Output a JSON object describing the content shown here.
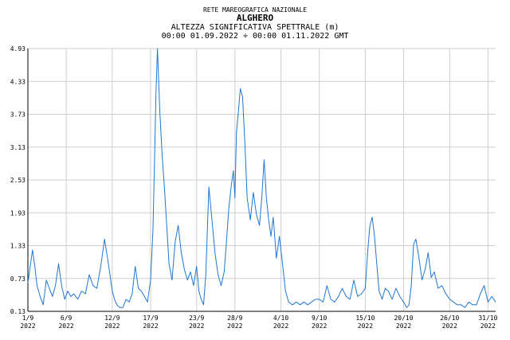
{
  "header": {
    "network": "RETE MAREOGRAFICA NAZIONALE",
    "station": "ALGHERO",
    "quantity": "ALTEZZA SIGNIFICATIVA SPETTRALE (m)",
    "period": "00:00 01.09.2022 ÷ 00:00 01.11.2022 GMT"
  },
  "colors": {
    "series": "#1f77d4",
    "grid": "#cfcfcf",
    "axis": "#000000"
  },
  "chart_data": {
    "type": "line",
    "title": "ALTEZZA SIGNIFICATIVA SPETTRALE (m)",
    "xlabel": "",
    "ylabel": "",
    "xlim": [
      0,
      61
    ],
    "ylim": [
      0.13,
      4.93
    ],
    "grid": true,
    "legend": "none",
    "y_ticks": [
      {
        "value": 0.13,
        "label": "0.13"
      },
      {
        "value": 0.73,
        "label": "0.73"
      },
      {
        "value": 1.33,
        "label": "1.33"
      },
      {
        "value": 1.93,
        "label": "1.93"
      },
      {
        "value": 2.53,
        "label": "2.53"
      },
      {
        "value": 3.13,
        "label": "3.13"
      },
      {
        "value": 3.73,
        "label": "3.73"
      },
      {
        "value": 4.33,
        "label": "4.33"
      },
      {
        "value": 4.93,
        "label": "4.93"
      }
    ],
    "x_ticks": [
      {
        "day": 0,
        "label": "1/9",
        "year": "2022"
      },
      {
        "day": 5,
        "label": "6/9",
        "year": "2022"
      },
      {
        "day": 11,
        "label": "12/9",
        "year": "2022"
      },
      {
        "day": 16,
        "label": "17/9",
        "year": "2022"
      },
      {
        "day": 22,
        "label": "23/9",
        "year": "2022"
      },
      {
        "day": 27,
        "label": "28/9",
        "year": "2022"
      },
      {
        "day": 33,
        "label": "4/10",
        "year": "2022"
      },
      {
        "day": 38,
        "label": "9/10",
        "year": "2022"
      },
      {
        "day": 44,
        "label": "15/10",
        "year": "2022"
      },
      {
        "day": 49,
        "label": "20/10",
        "year": "2022"
      },
      {
        "day": 55,
        "label": "26/10",
        "year": "2022"
      },
      {
        "day": 60,
        "label": "31/10",
        "year": "2022"
      }
    ],
    "series": [
      {
        "x": [
          0,
          0.3,
          0.6,
          0.9,
          1.2,
          1.6,
          2.0,
          2.4,
          2.8,
          3.2,
          3.6,
          4.0,
          4.4,
          4.8,
          5.2,
          5.6,
          6.0,
          6.5,
          7.0,
          7.5,
          8.0,
          8.5,
          9.0,
          9.5,
          10.0,
          10.5,
          11.0,
          11.3,
          11.6,
          12.0,
          12.4,
          12.8,
          13.2,
          13.6,
          14.0,
          14.4,
          14.8,
          15.2,
          15.6,
          16.0,
          16.3,
          16.5,
          16.7,
          16.9,
          17.2,
          17.5,
          17.8,
          18.1,
          18.4,
          18.8,
          19.2,
          19.6,
          20.0,
          20.4,
          20.8,
          21.2,
          21.6,
          22.0,
          22.3,
          22.6,
          22.9,
          23.2,
          23.6,
          24.0,
          24.4,
          24.8,
          25.2,
          25.6,
          25.9,
          26.2,
          26.5,
          26.8,
          27.0,
          27.2,
          27.4,
          27.7,
          28.0,
          28.3,
          28.6,
          29.0,
          29.4,
          29.8,
          30.2,
          30.5,
          30.8,
          31.1,
          31.4,
          31.7,
          32.0,
          32.4,
          32.8,
          33.2,
          33.6,
          34.0,
          34.5,
          35.0,
          35.5,
          36.0,
          36.5,
          37.0,
          37.5,
          38.0,
          38.5,
          39.0,
          39.5,
          40.0,
          40.5,
          41.0,
          41.5,
          42.0,
          42.5,
          43.0,
          43.5,
          44.0,
          44.3,
          44.6,
          44.9,
          45.2,
          45.5,
          45.8,
          46.2,
          46.6,
          47.0,
          47.5,
          48.0,
          48.5,
          49.0,
          49.4,
          49.7,
          50.0,
          50.3,
          50.6,
          51.0,
          51.4,
          51.8,
          52.2,
          52.6,
          53.0,
          53.5,
          54.0,
          54.5,
          55.0,
          55.5,
          56.0,
          56.5,
          57.0,
          57.5,
          58.0,
          58.5,
          59.0,
          59.5,
          60.0,
          60.5,
          61.0
        ],
        "y": [
          0.65,
          0.95,
          1.25,
          0.95,
          0.6,
          0.4,
          0.25,
          0.7,
          0.55,
          0.4,
          0.6,
          1.0,
          0.6,
          0.35,
          0.5,
          0.4,
          0.45,
          0.35,
          0.5,
          0.45,
          0.8,
          0.6,
          0.55,
          0.95,
          1.45,
          1.0,
          0.5,
          0.35,
          0.25,
          0.2,
          0.2,
          0.35,
          0.3,
          0.45,
          0.95,
          0.55,
          0.5,
          0.4,
          0.3,
          0.7,
          1.6,
          2.8,
          4.1,
          4.93,
          3.8,
          3.0,
          2.4,
          1.7,
          1.0,
          0.7,
          1.4,
          1.7,
          1.2,
          0.9,
          0.7,
          0.85,
          0.6,
          0.95,
          0.5,
          0.35,
          0.25,
          0.8,
          2.4,
          1.8,
          1.2,
          0.8,
          0.6,
          0.85,
          1.4,
          2.0,
          2.4,
          2.7,
          2.2,
          3.4,
          3.7,
          4.2,
          4.05,
          3.2,
          2.2,
          1.8,
          2.3,
          1.9,
          1.7,
          2.2,
          2.9,
          2.2,
          1.8,
          1.5,
          1.85,
          1.1,
          1.5,
          1.0,
          0.5,
          0.3,
          0.25,
          0.3,
          0.25,
          0.3,
          0.25,
          0.3,
          0.35,
          0.35,
          0.3,
          0.6,
          0.35,
          0.3,
          0.4,
          0.55,
          0.4,
          0.35,
          0.7,
          0.4,
          0.45,
          0.55,
          1.2,
          1.7,
          1.85,
          1.5,
          1.0,
          0.5,
          0.35,
          0.55,
          0.5,
          0.35,
          0.55,
          0.4,
          0.3,
          0.2,
          0.25,
          0.6,
          1.35,
          1.45,
          1.1,
          0.7,
          0.9,
          1.2,
          0.75,
          0.85,
          0.55,
          0.6,
          0.45,
          0.35,
          0.3,
          0.25,
          0.25,
          0.2,
          0.3,
          0.25,
          0.25,
          0.45,
          0.6,
          0.3,
          0.4,
          0.3
        ]
      }
    ]
  }
}
